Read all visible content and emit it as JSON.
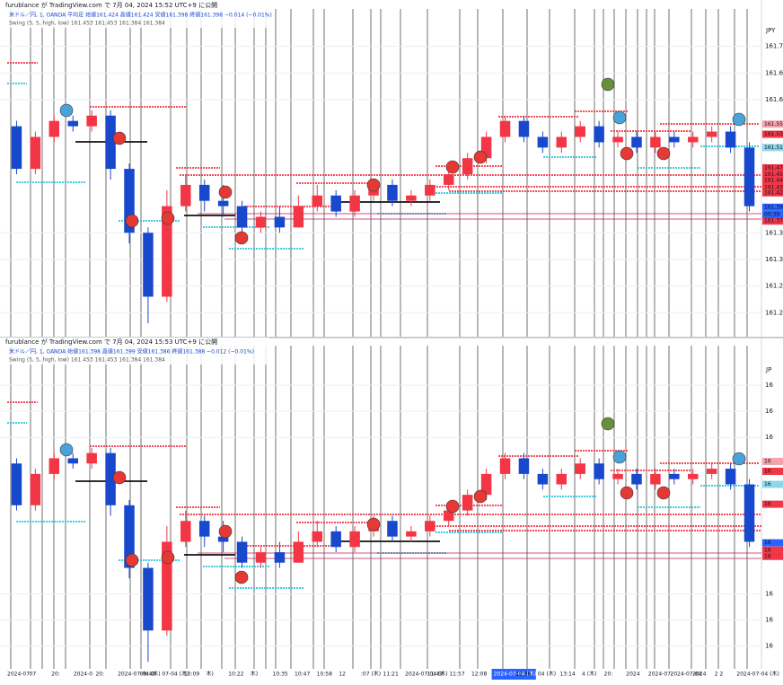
{
  "chart_data": [
    {
      "type": "candlestick",
      "title": "furublance が TradingView.com で 7月 04, 2024 15:52 UTC+9 に公開",
      "legend": [
        "米ドル／円, 1, OANDA 平均足 始値161.424 高値161.424 安値161.398 終値161.398 −0.014 (−0.01%)",
        "Swing (5, 5, high, low)  161.453  161.453  161.384  161.384"
      ],
      "unit": "JPY",
      "up_color": "#f23645",
      "down_color": "#1848cc",
      "open": [
        161.55,
        161.47,
        161.53,
        161.56,
        161.55,
        161.57,
        161.47,
        161.35,
        161.23,
        161.4,
        161.44,
        161.41,
        161.4,
        161.36,
        161.38,
        161.36,
        161.4,
        161.42,
        161.39,
        161.42,
        161.44,
        161.41,
        161.42,
        161.44,
        161.46,
        161.49,
        161.53,
        161.56,
        161.53,
        161.51,
        161.53,
        161.55,
        161.52,
        161.53,
        161.51,
        161.53,
        161.52,
        161.53,
        161.54,
        161.51
      ],
      "high": [
        161.56,
        161.54,
        161.57,
        161.57,
        161.58,
        161.58,
        161.48,
        161.36,
        161.43,
        161.46,
        161.45,
        161.44,
        161.41,
        161.39,
        161.4,
        161.42,
        161.44,
        161.43,
        161.43,
        161.45,
        161.45,
        161.43,
        161.45,
        161.47,
        161.5,
        161.54,
        161.57,
        161.57,
        161.54,
        161.54,
        161.56,
        161.56,
        161.54,
        161.54,
        161.54,
        161.54,
        161.54,
        161.55,
        161.55,
        161.52
      ],
      "low": [
        161.46,
        161.46,
        161.52,
        161.54,
        161.54,
        161.45,
        161.33,
        161.18,
        161.22,
        161.39,
        161.39,
        161.38,
        161.35,
        161.35,
        161.35,
        161.36,
        161.39,
        161.38,
        161.38,
        161.41,
        161.4,
        161.4,
        161.41,
        161.43,
        161.45,
        161.48,
        161.52,
        161.52,
        161.5,
        161.5,
        161.52,
        161.51,
        161.51,
        161.5,
        161.5,
        161.51,
        161.51,
        161.52,
        161.5,
        161.39
      ],
      "close": [
        161.47,
        161.53,
        161.56,
        161.55,
        161.57,
        161.47,
        161.35,
        161.23,
        161.4,
        161.44,
        161.41,
        161.4,
        161.36,
        161.38,
        161.36,
        161.4,
        161.42,
        161.39,
        161.42,
        161.44,
        161.41,
        161.42,
        161.44,
        161.46,
        161.49,
        161.53,
        161.56,
        161.53,
        161.51,
        161.53,
        161.55,
        161.52,
        161.53,
        161.51,
        161.53,
        161.52,
        161.53,
        161.54,
        161.51,
        161.4
      ],
      "ylim": [
        161.16,
        161.75
      ],
      "yticks": [
        {
          "value": 161.7,
          "label": "161.700"
        },
        {
          "value": 161.65,
          "label": "161.650"
        },
        {
          "value": 161.6,
          "label": "161.600"
        },
        {
          "value": 161.35,
          "label": "161.350"
        },
        {
          "value": 161.3,
          "label": "161.300"
        },
        {
          "value": 161.25,
          "label": "161.250"
        },
        {
          "value": 161.2,
          "label": "161.200"
        }
      ],
      "price_labels": [
        {
          "value": 161.554,
          "label": "161.554",
          "color": "#f7a1a8"
        },
        {
          "value": 161.535,
          "label": "161.535",
          "color": "#f23645"
        },
        {
          "value": 161.51,
          "label": "161.510",
          "color": "#8fd6e8"
        },
        {
          "value": 161.472,
          "label": "161.472",
          "color": "#f23645"
        },
        {
          "value": 161.459,
          "label": "161.459",
          "color": "#f23645"
        },
        {
          "value": 161.448,
          "label": "161.448",
          "color": "#f23645"
        },
        {
          "value": 161.435,
          "label": "161.435",
          "color": "#f23645"
        },
        {
          "value": 161.425,
          "label": "161.425",
          "color": "#f23645"
        },
        {
          "value": 161.398,
          "label": "161.398",
          "color": "#2962ff"
        },
        {
          "value": 161.384,
          "label": "161.384",
          "color": "#f23645"
        },
        {
          "value": 161.372,
          "label": "161.372",
          "color": "#f23645"
        }
      ],
      "countdown": "00:39"
    },
    {
      "type": "candlestick",
      "title": "furublance が TradingView.com で 7月 04, 2024 15:53 UTC+9 に公開",
      "legend": [
        "米ドル／円, 1, OANDA 始値161.398 高値161.399 安値161.386 終値161.388 −0.012 (−0.01%)",
        "Swing (5, 5, high, low)  161.453  161.453  161.384  161.384"
      ],
      "unit": "JP",
      "up_color": "#f23645",
      "down_color": "#1848cc",
      "open": [
        161.55,
        161.47,
        161.53,
        161.56,
        161.55,
        161.57,
        161.47,
        161.35,
        161.23,
        161.4,
        161.44,
        161.41,
        161.4,
        161.36,
        161.38,
        161.36,
        161.4,
        161.42,
        161.39,
        161.42,
        161.44,
        161.41,
        161.42,
        161.44,
        161.46,
        161.49,
        161.53,
        161.56,
        161.53,
        161.51,
        161.53,
        161.55,
        161.52,
        161.53,
        161.51,
        161.53,
        161.52,
        161.53,
        161.54,
        161.51
      ],
      "high": [
        161.56,
        161.54,
        161.57,
        161.57,
        161.58,
        161.58,
        161.48,
        161.36,
        161.43,
        161.46,
        161.45,
        161.44,
        161.41,
        161.39,
        161.4,
        161.42,
        161.44,
        161.43,
        161.43,
        161.45,
        161.45,
        161.43,
        161.45,
        161.47,
        161.5,
        161.54,
        161.57,
        161.57,
        161.54,
        161.54,
        161.56,
        161.56,
        161.54,
        161.54,
        161.54,
        161.54,
        161.54,
        161.55,
        161.55,
        161.52
      ],
      "low": [
        161.46,
        161.46,
        161.52,
        161.54,
        161.54,
        161.45,
        161.33,
        161.17,
        161.22,
        161.39,
        161.39,
        161.38,
        161.35,
        161.35,
        161.35,
        161.36,
        161.39,
        161.38,
        161.38,
        161.41,
        161.4,
        161.4,
        161.41,
        161.43,
        161.45,
        161.48,
        161.52,
        161.52,
        161.5,
        161.5,
        161.52,
        161.51,
        161.51,
        161.5,
        161.5,
        161.51,
        161.51,
        161.52,
        161.5,
        161.39
      ],
      "close": [
        161.47,
        161.53,
        161.56,
        161.55,
        161.57,
        161.47,
        161.35,
        161.23,
        161.4,
        161.44,
        161.41,
        161.4,
        161.36,
        161.38,
        161.36,
        161.4,
        161.42,
        161.39,
        161.42,
        161.44,
        161.41,
        161.42,
        161.44,
        161.46,
        161.49,
        161.53,
        161.56,
        161.53,
        161.51,
        161.53,
        161.55,
        161.52,
        161.53,
        161.51,
        161.53,
        161.52,
        161.53,
        161.54,
        161.51,
        161.4
      ],
      "ylim": [
        161.16,
        161.75
      ],
      "yticks": [
        {
          "value": 161.7,
          "label": "16"
        },
        {
          "value": 161.65,
          "label": "16"
        },
        {
          "value": 161.6,
          "label": "16"
        },
        {
          "value": 161.3,
          "label": "16"
        },
        {
          "value": 161.25,
          "label": "16"
        },
        {
          "value": 161.2,
          "label": "16"
        }
      ],
      "price_labels": [
        {
          "value": 161.554,
          "label": "16",
          "color": "#f7a1a8"
        },
        {
          "value": 161.535,
          "label": "16",
          "color": "#f23645"
        },
        {
          "value": 161.51,
          "label": "16",
          "color": "#8fd6e8"
        },
        {
          "value": 161.472,
          "label": "16",
          "color": "#f23645"
        },
        {
          "value": 161.398,
          "label": "16",
          "color": "#2962ff"
        },
        {
          "value": 161.384,
          "label": "16",
          "color": "#f23645"
        },
        {
          "value": 161.372,
          "label": "16",
          "color": "#f23645"
        }
      ],
      "x_labels": [
        "2024-07",
        "07",
        "20:",
        "2024-0",
        "20:",
        "2024-07-04 (木)",
        "09:48",
        "07-04 (木)",
        "10:09",
        "木)",
        "10:22",
        "木)",
        "10:35",
        "10:47",
        "10:58",
        "12",
        ":07 (木)",
        "11:21",
        "2024-07-04 (木)",
        "11:49",
        "11:57",
        "12:08",
        "2024-07-04 (木)",
        "12:36",
        "04 (木)",
        "13:14",
        "4 (木)",
        "20:",
        "2024",
        "2024-07-",
        "2024-07-04",
        "2024",
        "2 2",
        "2024-07-04 (木)"
      ],
      "x_label_highlight": 22
    }
  ]
}
